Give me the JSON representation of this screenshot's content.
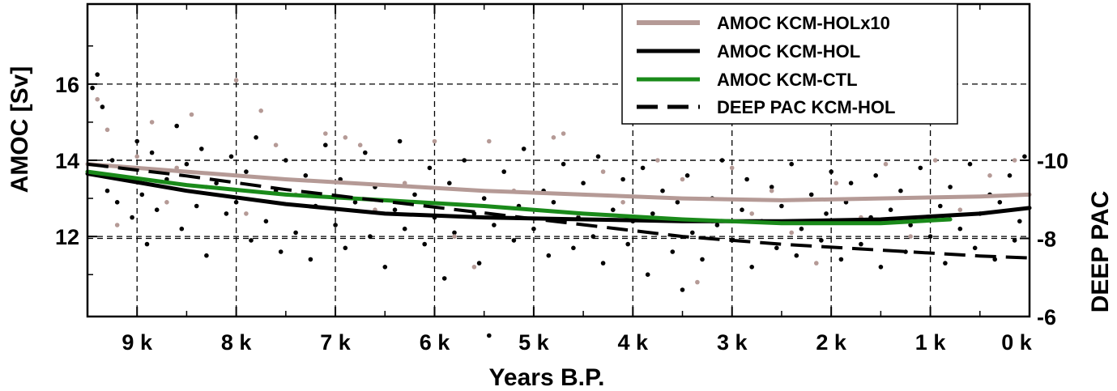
{
  "chart_data": {
    "type": "line",
    "x_axis": {
      "label": "Years B.P.",
      "range": [
        9.5,
        0
      ],
      "ticks": [
        9,
        8,
        7,
        6,
        5,
        4,
        3,
        2,
        1,
        0
      ],
      "tick_labels": [
        "9 k",
        "8 k",
        "7 k",
        "6 k",
        "5 k",
        "4 k",
        "3 k",
        "2 k",
        "1 k",
        "0 k"
      ]
    },
    "y_axis_left": {
      "label": "AMOC [Sv]",
      "range": [
        9.9,
        18.1
      ],
      "ticks": [
        12,
        14,
        16
      ],
      "tick_labels": [
        "12",
        "14",
        "16"
      ]
    },
    "y_axis_right": {
      "label": "DEEP PAC",
      "range": [
        -6,
        -14
      ],
      "ticks": [
        -6,
        -8,
        -10
      ],
      "tick_labels": [
        "-6",
        "-8",
        "-10"
      ]
    },
    "grid": true,
    "legend_position": "top-right",
    "series": [
      {
        "name": "AMOC KCM-HOLx10",
        "color": "#b59a96",
        "style": "solid",
        "axis": "left",
        "x": [
          9.5,
          8.5,
          7.5,
          6.5,
          5.5,
          4.5,
          3.5,
          2.5,
          1.5,
          0.5,
          0
        ],
        "y": [
          13.9,
          13.7,
          13.5,
          13.35,
          13.2,
          13.1,
          13.0,
          12.95,
          13.0,
          13.05,
          13.1
        ]
      },
      {
        "name": "AMOC KCM-HOL",
        "color": "#000000",
        "style": "solid",
        "axis": "left",
        "x": [
          9.5,
          8.5,
          7.5,
          6.5,
          5.5,
          4.5,
          3.5,
          2.5,
          1.5,
          0.5,
          0
        ],
        "y": [
          13.65,
          13.2,
          12.85,
          12.6,
          12.5,
          12.45,
          12.4,
          12.4,
          12.45,
          12.6,
          12.75
        ]
      },
      {
        "name": "AMOC KCM-CTL",
        "color": "#1a8a1a",
        "style": "solid",
        "axis": "left",
        "x": [
          9.5,
          8.5,
          7.5,
          6.5,
          5.5,
          4.5,
          3.5,
          2.5,
          1.5,
          0.8
        ],
        "y": [
          13.7,
          13.35,
          13.1,
          12.95,
          12.8,
          12.6,
          12.45,
          12.35,
          12.35,
          12.45
        ]
      },
      {
        "name": "DEEP PAC KCM-HOL",
        "color": "#000000",
        "style": "dashed",
        "axis": "right",
        "x": [
          9.5,
          8.5,
          7.5,
          6.5,
          5.5,
          4.5,
          3.5,
          2.5,
          1.5,
          0.5,
          0
        ],
        "y": [
          -9.9,
          -9.6,
          -9.25,
          -8.95,
          -8.65,
          -8.35,
          -8.05,
          -7.85,
          -7.7,
          -7.55,
          -7.5
        ]
      }
    ],
    "scatter": [
      {
        "series": "AMOC KCM-HOL",
        "color": "#000000",
        "axis": "left",
        "points": [
          [
            9.45,
            15.9
          ],
          [
            9.4,
            16.25
          ],
          [
            9.35,
            15.4
          ],
          [
            9.3,
            13.2
          ],
          [
            9.25,
            14.0
          ],
          [
            9.2,
            12.9
          ],
          [
            9.1,
            13.8
          ],
          [
            9.05,
            12.5
          ],
          [
            9.0,
            14.5
          ],
          [
            8.95,
            13.1
          ],
          [
            8.9,
            11.8
          ],
          [
            8.85,
            14.2
          ],
          [
            8.8,
            12.7
          ],
          [
            8.7,
            13.5
          ],
          [
            8.6,
            14.9
          ],
          [
            8.55,
            12.2
          ],
          [
            8.5,
            13.9
          ],
          [
            8.4,
            12.8
          ],
          [
            8.35,
            14.3
          ],
          [
            8.3,
            11.5
          ],
          [
            8.2,
            13.4
          ],
          [
            8.1,
            12.6
          ],
          [
            8.05,
            14.1
          ],
          [
            8.0,
            12.9
          ],
          [
            7.9,
            13.7
          ],
          [
            7.85,
            11.9
          ],
          [
            7.8,
            14.6
          ],
          [
            7.7,
            12.4
          ],
          [
            7.6,
            13.2
          ],
          [
            7.55,
            11.6
          ],
          [
            7.5,
            14.0
          ],
          [
            7.4,
            12.1
          ],
          [
            7.3,
            13.6
          ],
          [
            7.25,
            11.4
          ],
          [
            7.2,
            12.8
          ],
          [
            7.1,
            14.4
          ],
          [
            7.0,
            12.3
          ],
          [
            6.95,
            13.5
          ],
          [
            6.9,
            11.7
          ],
          [
            6.8,
            12.9
          ],
          [
            6.7,
            14.2
          ],
          [
            6.65,
            12.0
          ],
          [
            6.6,
            13.3
          ],
          [
            6.5,
            11.2
          ],
          [
            6.4,
            12.7
          ],
          [
            6.35,
            14.5
          ],
          [
            6.3,
            12.2
          ],
          [
            6.2,
            13.1
          ],
          [
            6.1,
            11.8
          ],
          [
            6.05,
            13.8
          ],
          [
            6.0,
            12.5
          ],
          [
            5.9,
            10.9
          ],
          [
            5.85,
            13.4
          ],
          [
            5.8,
            12.1
          ],
          [
            5.7,
            14.0
          ],
          [
            5.6,
            12.6
          ],
          [
            5.55,
            11.3
          ],
          [
            5.5,
            13.0
          ],
          [
            5.45,
            9.4
          ],
          [
            5.4,
            12.3
          ],
          [
            5.3,
            13.7
          ],
          [
            5.2,
            11.9
          ],
          [
            5.15,
            12.8
          ],
          [
            5.1,
            14.3
          ],
          [
            5.0,
            12.2
          ],
          [
            4.9,
            13.2
          ],
          [
            4.85,
            11.5
          ],
          [
            4.8,
            12.9
          ],
          [
            4.7,
            13.9
          ],
          [
            4.6,
            11.7
          ],
          [
            4.55,
            12.5
          ],
          [
            4.5,
            13.4
          ],
          [
            4.4,
            12.0
          ],
          [
            4.35,
            14.1
          ],
          [
            4.3,
            11.3
          ],
          [
            4.2,
            12.7
          ],
          [
            4.1,
            13.5
          ],
          [
            4.05,
            11.8
          ],
          [
            4.0,
            12.4
          ],
          [
            3.9,
            13.8
          ],
          [
            3.85,
            11.0
          ],
          [
            3.8,
            12.6
          ],
          [
            3.7,
            13.2
          ],
          [
            3.6,
            11.6
          ],
          [
            3.55,
            12.9
          ],
          [
            3.5,
            10.6
          ],
          [
            3.45,
            13.6
          ],
          [
            3.4,
            12.1
          ],
          [
            3.3,
            11.4
          ],
          [
            3.2,
            13.0
          ],
          [
            3.15,
            12.3
          ],
          [
            3.1,
            14.0
          ],
          [
            3.0,
            11.9
          ],
          [
            2.9,
            12.7
          ],
          [
            2.85,
            13.5
          ],
          [
            2.8,
            11.2
          ],
          [
            2.7,
            12.4
          ],
          [
            2.6,
            13.3
          ],
          [
            2.55,
            11.7
          ],
          [
            2.5,
            12.8
          ],
          [
            2.4,
            13.9
          ],
          [
            2.35,
            11.5
          ],
          [
            2.3,
            12.2
          ],
          [
            2.2,
            13.1
          ],
          [
            2.1,
            11.9
          ],
          [
            2.05,
            12.6
          ],
          [
            2.0,
            13.7
          ],
          [
            1.9,
            11.4
          ],
          [
            1.85,
            12.9
          ],
          [
            1.8,
            13.4
          ],
          [
            1.7,
            11.8
          ],
          [
            1.6,
            12.5
          ],
          [
            1.55,
            13.6
          ],
          [
            1.5,
            11.2
          ],
          [
            1.4,
            12.7
          ],
          [
            1.3,
            13.2
          ],
          [
            1.25,
            11.6
          ],
          [
            1.2,
            12.3
          ],
          [
            1.1,
            13.8
          ],
          [
            1.0,
            12.0
          ],
          [
            0.9,
            12.8
          ],
          [
            0.85,
            11.3
          ],
          [
            0.8,
            13.3
          ],
          [
            0.7,
            12.2
          ],
          [
            0.6,
            13.9
          ],
          [
            0.55,
            11.7
          ],
          [
            0.5,
            12.6
          ],
          [
            0.4,
            13.1
          ],
          [
            0.35,
            11.4
          ],
          [
            0.3,
            12.9
          ],
          [
            0.2,
            13.6
          ],
          [
            0.15,
            11.9
          ],
          [
            0.1,
            12.4
          ],
          [
            0.05,
            14.1
          ]
        ]
      },
      {
        "series": "AMOC KCM-HOLx10",
        "color": "#b59a96",
        "axis": "left",
        "points": [
          [
            9.4,
            15.6
          ],
          [
            9.3,
            14.8
          ],
          [
            9.2,
            12.3
          ],
          [
            9.0,
            14.1
          ],
          [
            8.85,
            15.0
          ],
          [
            8.7,
            12.9
          ],
          [
            8.6,
            13.8
          ],
          [
            8.45,
            15.2
          ],
          [
            8.3,
            13.3
          ],
          [
            8.0,
            16.1
          ],
          [
            7.9,
            12.6
          ],
          [
            7.75,
            15.3
          ],
          [
            7.6,
            14.4
          ],
          [
            7.4,
            13.1
          ],
          [
            7.1,
            14.7
          ],
          [
            6.9,
            14.6
          ],
          [
            6.75,
            14.4
          ],
          [
            6.6,
            12.7
          ],
          [
            6.3,
            13.4
          ],
          [
            6.0,
            14.5
          ],
          [
            5.8,
            12.0
          ],
          [
            5.6,
            11.2
          ],
          [
            5.45,
            14.5
          ],
          [
            5.2,
            13.2
          ],
          [
            4.8,
            14.6
          ],
          [
            4.7,
            14.7
          ],
          [
            4.55,
            12.6
          ],
          [
            4.3,
            13.7
          ],
          [
            4.1,
            12.9
          ],
          [
            3.75,
            14.0
          ],
          [
            3.5,
            13.5
          ],
          [
            3.35,
            10.8
          ],
          [
            3.2,
            12.4
          ],
          [
            3.0,
            13.8
          ],
          [
            2.8,
            12.6
          ],
          [
            2.6,
            13.2
          ],
          [
            2.4,
            12.1
          ],
          [
            2.15,
            11.3
          ],
          [
            1.95,
            13.4
          ],
          [
            1.7,
            12.5
          ],
          [
            1.45,
            13.9
          ],
          [
            1.2,
            12.0
          ],
          [
            0.95,
            14.0
          ],
          [
            0.7,
            12.7
          ],
          [
            0.4,
            13.6
          ],
          [
            0.15,
            14.0
          ]
        ]
      }
    ]
  },
  "legend": {
    "items": [
      {
        "label": "AMOC KCM-HOLx10",
        "color": "#b59a96",
        "style": "solid"
      },
      {
        "label": "AMOC KCM-HOL",
        "color": "#000000",
        "style": "solid"
      },
      {
        "label": "AMOC KCM-CTL",
        "color": "#1a8a1a",
        "style": "solid"
      },
      {
        "label": "DEEP PAC KCM-HOL",
        "color": "#000000",
        "style": "dashed"
      }
    ]
  }
}
